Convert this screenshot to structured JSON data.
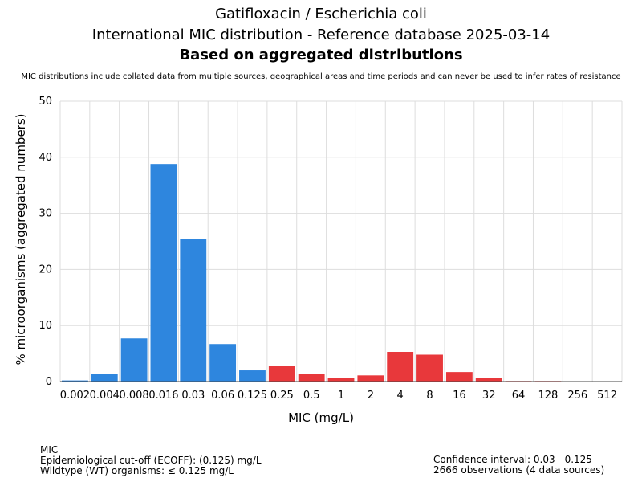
{
  "header": {
    "title": "Gatifloxacin / Escherichia coli",
    "subtitle": "International MIC distribution - Reference database 2025-03-14",
    "subtitle2": "Based on aggregated distributions",
    "note": "MIC distributions include collated data from multiple sources, geographical areas and time periods and can never be used to infer rates of resistance"
  },
  "footer": {
    "left": [
      "MIC",
      "Epidemiological cut-off (ECOFF): (0.125) mg/L",
      "Wildtype (WT) organisms: ≤ 0.125 mg/L"
    ],
    "right": [
      "Confidence interval: 0.03 - 0.125",
      "2666 observations (4 data sources)"
    ]
  },
  "colors": {
    "wildtype": "#2e86de",
    "non_wildtype": "#e8383b",
    "grid": "#dddddd"
  },
  "chart_data": {
    "type": "bar",
    "xlabel": "MIC (mg/L)",
    "ylabel": "% microorganisms (aggregated numbers)",
    "ylim": [
      0,
      50
    ],
    "yticks": [
      0,
      10,
      20,
      30,
      40,
      50
    ],
    "grid": true,
    "categories": [
      "0.002",
      "0.004",
      "0.008",
      "0.016",
      "0.03",
      "0.06",
      "0.125",
      "0.25",
      "0.5",
      "1",
      "2",
      "4",
      "8",
      "16",
      "32",
      "64",
      "128",
      "256",
      "512"
    ],
    "values": [
      0.2,
      1.4,
      7.7,
      38.8,
      25.4,
      6.7,
      2.0,
      2.8,
      1.4,
      0.6,
      1.1,
      5.3,
      4.8,
      1.7,
      0.7,
      0.1,
      0.1,
      0,
      0
    ],
    "wildtype": [
      true,
      true,
      true,
      true,
      true,
      true,
      true,
      false,
      false,
      false,
      false,
      false,
      false,
      false,
      false,
      false,
      false,
      false,
      false
    ]
  }
}
